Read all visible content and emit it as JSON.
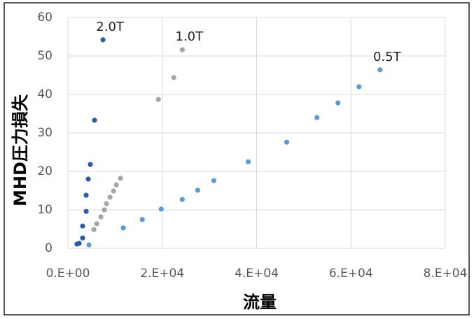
{
  "chart_data": {
    "type": "scatter",
    "x_label": "流量",
    "y_label": "MHD圧力損失",
    "xlim": [
      0,
      80000
    ],
    "xticks": [
      {
        "value": 0,
        "label": "0.E+00"
      },
      {
        "value": 20000,
        "label": "2.E+04"
      },
      {
        "value": 40000,
        "label": "4.E+04"
      },
      {
        "value": 60000,
        "label": "6.E+04"
      },
      {
        "value": 80000,
        "label": "8.E+04"
      }
    ],
    "ylim": [
      0,
      60
    ],
    "yticks": [
      0,
      10,
      20,
      30,
      40,
      50,
      60
    ],
    "grid": true,
    "series": [
      {
        "name": "2.0T",
        "color": "#2e5ca8",
        "x": [
          1930,
          2380,
          3120,
          3120,
          3870,
          3870,
          4310,
          4760,
          5650,
          7435
        ],
        "y": [
          1.1,
          1.3,
          2.7,
          5.8,
          9.6,
          13.8,
          18,
          21.8,
          33.3,
          54.2
        ]
      },
      {
        "name": "1.0T",
        "color": "#a5a5a5",
        "x": [
          5500,
          6100,
          6990,
          7730,
          8180,
          8920,
          9670,
          10260,
          11150,
          19180,
          22450,
          24240
        ],
        "y": [
          4.9,
          6.4,
          8.2,
          10,
          11.6,
          13.3,
          14.9,
          16.5,
          18.2,
          38.7,
          44.4,
          51.6
        ]
      },
      {
        "name": "0.5T",
        "color": "#5b9bd5",
        "x": [
          4460,
          11750,
          15760,
          19780,
          24240,
          27510,
          30930,
          38220,
          46390,
          52790,
          57250,
          61710,
          66170
        ],
        "y": [
          0.9,
          5.3,
          7.5,
          10.2,
          12.7,
          15.1,
          17.6,
          22.5,
          27.6,
          34,
          37.8,
          42,
          46.4
        ]
      }
    ]
  }
}
